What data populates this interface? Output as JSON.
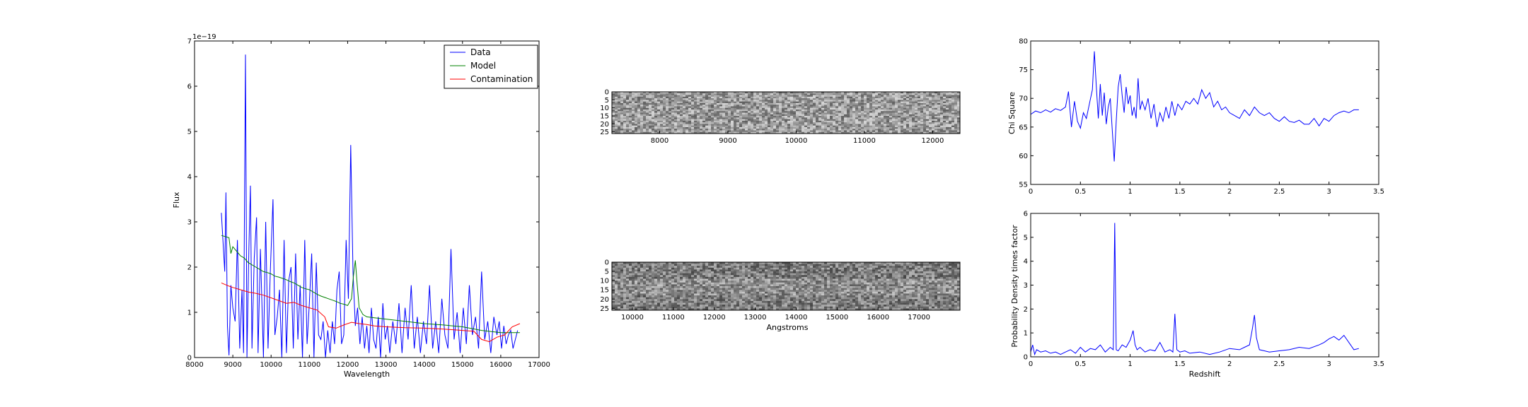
{
  "colors": {
    "data": "#0000ff",
    "model": "#008000",
    "contamination": "#ff0000",
    "axes": "#000000",
    "background": "#ffffff"
  },
  "chart_data": [
    {
      "id": "spectrum",
      "type": "line",
      "xlabel": "Wavelength",
      "ylabel": "Flux",
      "offset_text": "1e−19",
      "xlim": [
        8000,
        17000
      ],
      "ylim": [
        0,
        7
      ],
      "xticks": [
        8000,
        9000,
        10000,
        11000,
        12000,
        13000,
        14000,
        15000,
        16000,
        17000
      ],
      "yticks": [
        0,
        1,
        2,
        3,
        4,
        5,
        6,
        7
      ],
      "legend": {
        "position": "top-right",
        "entries": [
          "Data",
          "Model",
          "Contamination"
        ]
      },
      "series": [
        {
          "name": "Data",
          "color_key": "data",
          "x": [
            8700,
            8790,
            8820,
            8860,
            8900,
            8950,
            9000,
            9060,
            9120,
            9180,
            9240,
            9280,
            9330,
            9370,
            9420,
            9460,
            9500,
            9560,
            9620,
            9660,
            9720,
            9800,
            9860,
            9920,
            9980,
            10050,
            10100,
            10160,
            10220,
            10280,
            10340,
            10400,
            10460,
            10520,
            10580,
            10640,
            10700,
            10760,
            10820,
            10880,
            10940,
            11000,
            11060,
            11120,
            11180,
            11240,
            11300,
            11360,
            11420,
            11480,
            11540,
            11600,
            11660,
            11720,
            11780,
            11840,
            11900,
            11960,
            12020,
            12080,
            12140,
            12200,
            12260,
            12320,
            12380,
            12440,
            12500,
            12560,
            12620,
            12680,
            12740,
            12800,
            12860,
            12920,
            12980,
            13040,
            13100,
            13180,
            13260,
            13340,
            13420,
            13500,
            13580,
            13660,
            13740,
            13820,
            13900,
            13980,
            14060,
            14140,
            14220,
            14300,
            14380,
            14460,
            14540,
            14620,
            14700,
            14780,
            14860,
            14940,
            15020,
            15100,
            15180,
            15260,
            15340,
            15420,
            15500,
            15580,
            15660,
            15740,
            15820,
            15900,
            15960,
            16020,
            16080,
            16140,
            16200,
            16260,
            16320,
            16380,
            16440
          ],
          "y": [
            3.2,
            1.9,
            3.65,
            0.7,
            0.05,
            1.6,
            1.1,
            0.8,
            2.6,
            0.2,
            1.5,
            0.1,
            6.7,
            0.0,
            2.4,
            3.8,
            0.2,
            2.2,
            3.1,
            0.1,
            2.4,
            0.0,
            3.0,
            0.2,
            1.9,
            3.5,
            0.5,
            0.9,
            1.5,
            0.0,
            2.6,
            0.1,
            1.7,
            2.0,
            0.2,
            2.3,
            0.4,
            1.6,
            0.0,
            2.6,
            0.3,
            1.2,
            2.3,
            0.0,
            2.1,
            0.5,
            0.4,
            0.8,
            0.0,
            0.6,
            0.1,
            0.8,
            0.3,
            1.5,
            1.9,
            0.3,
            0.5,
            2.6,
            1.3,
            4.7,
            1.9,
            0.7,
            1.1,
            0.3,
            0.9,
            0.2,
            0.7,
            0.1,
            1.1,
            0.4,
            0.2,
            0.9,
            0.0,
            1.2,
            0.4,
            0.7,
            0.1,
            0.8,
            0.3,
            1.2,
            0.1,
            1.1,
            0.4,
            1.6,
            0.2,
            0.9,
            0.1,
            0.8,
            0.3,
            1.6,
            0.2,
            0.8,
            0.1,
            1.3,
            0.5,
            0.2,
            2.4,
            0.4,
            1.0,
            0.1,
            1.1,
            0.3,
            1.6,
            0.5,
            0.9,
            0.2,
            1.9,
            0.4,
            0.8,
            0.1,
            0.9,
            0.5,
            0.8,
            0.2,
            0.7,
            0.3,
            0.5,
            0.6,
            0.2,
            0.4,
            0.6
          ]
        },
        {
          "name": "Model",
          "color_key": "model",
          "x": [
            8700,
            8900,
            8950,
            9000,
            9100,
            9200,
            9300,
            9400,
            9500,
            9600,
            9700,
            9800,
            9900,
            10000,
            10100,
            10200,
            10300,
            10400,
            10500,
            10600,
            10700,
            10800,
            10900,
            11000,
            11100,
            11200,
            11300,
            11400,
            11500,
            11600,
            11700,
            11800,
            11900,
            12000,
            12100,
            12150,
            12200,
            12250,
            12300,
            12400,
            12500,
            12700,
            13000,
            13500,
            14000,
            14500,
            15000,
            15500,
            16000,
            16500
          ],
          "y": [
            2.7,
            2.65,
            2.3,
            2.45,
            2.35,
            2.25,
            2.2,
            2.1,
            2.05,
            2.0,
            1.95,
            1.9,
            1.88,
            1.85,
            1.8,
            1.78,
            1.75,
            1.72,
            1.68,
            1.65,
            1.6,
            1.55,
            1.52,
            1.5,
            1.45,
            1.4,
            1.36,
            1.33,
            1.3,
            1.27,
            1.24,
            1.2,
            1.18,
            1.15,
            1.3,
            1.8,
            2.15,
            1.6,
            1.1,
            0.95,
            0.9,
            0.88,
            0.85,
            0.8,
            0.75,
            0.72,
            0.68,
            0.6,
            0.55,
            0.55
          ]
        },
        {
          "name": "Contamination",
          "color_key": "contamination",
          "x": [
            8700,
            8900,
            9000,
            9200,
            9400,
            9600,
            9800,
            10000,
            10200,
            10400,
            10600,
            10800,
            11000,
            11200,
            11400,
            11500,
            11700,
            11900,
            12100,
            12300,
            12500,
            12700,
            13000,
            13500,
            14000,
            14500,
            15000,
            15300,
            15500,
            15700,
            15900,
            16100,
            16300,
            16500
          ],
          "y": [
            1.65,
            1.58,
            1.55,
            1.5,
            1.45,
            1.42,
            1.38,
            1.32,
            1.26,
            1.2,
            1.22,
            1.15,
            1.1,
            1.05,
            0.9,
            0.68,
            0.65,
            0.72,
            0.78,
            0.75,
            0.73,
            0.7,
            0.68,
            0.66,
            0.65,
            0.63,
            0.6,
            0.58,
            0.4,
            0.35,
            0.45,
            0.5,
            0.68,
            0.75
          ]
        }
      ]
    },
    {
      "id": "image-2d-top",
      "type": "heatmap",
      "xlim": [
        7300,
        12400
      ],
      "ylim": [
        0,
        26
      ],
      "xticks": [
        8000,
        9000,
        10000,
        11000,
        12000
      ],
      "yticks": [
        0,
        5,
        10,
        15,
        20,
        25
      ],
      "colormap": "gray"
    },
    {
      "id": "image-2d-bottom",
      "type": "heatmap",
      "xlabel": "Angstroms",
      "xlim": [
        9500,
        18000
      ],
      "ylim": [
        0,
        26
      ],
      "xticks": [
        10000,
        11000,
        12000,
        13000,
        14000,
        15000,
        16000,
        17000
      ],
      "yticks": [
        0,
        5,
        10,
        15,
        20,
        25
      ],
      "colormap": "gray"
    },
    {
      "id": "chi-square",
      "type": "line",
      "ylabel": "Chi Square",
      "xlim": [
        0.0,
        3.5
      ],
      "ylim": [
        55,
        80
      ],
      "xticks": [
        0.0,
        0.5,
        1.0,
        1.5,
        2.0,
        2.5,
        3.0,
        3.5
      ],
      "yticks": [
        55,
        60,
        65,
        70,
        75,
        80
      ],
      "series": [
        {
          "color_key": "data",
          "x": [
            0.0,
            0.05,
            0.1,
            0.15,
            0.2,
            0.25,
            0.3,
            0.35,
            0.38,
            0.41,
            0.44,
            0.47,
            0.5,
            0.53,
            0.56,
            0.59,
            0.62,
            0.64,
            0.66,
            0.68,
            0.7,
            0.72,
            0.74,
            0.76,
            0.78,
            0.8,
            0.82,
            0.84,
            0.86,
            0.88,
            0.9,
            0.92,
            0.94,
            0.96,
            0.98,
            1.0,
            1.02,
            1.04,
            1.06,
            1.08,
            1.1,
            1.12,
            1.15,
            1.18,
            1.21,
            1.24,
            1.27,
            1.3,
            1.33,
            1.36,
            1.39,
            1.42,
            1.45,
            1.48,
            1.52,
            1.56,
            1.6,
            1.64,
            1.68,
            1.72,
            1.76,
            1.8,
            1.84,
            1.88,
            1.92,
            1.96,
            2.0,
            2.05,
            2.1,
            2.15,
            2.2,
            2.25,
            2.3,
            2.35,
            2.4,
            2.45,
            2.5,
            2.55,
            2.6,
            2.65,
            2.7,
            2.75,
            2.8,
            2.85,
            2.9,
            2.95,
            3.0,
            3.05,
            3.1,
            3.15,
            3.2,
            3.25,
            3.3
          ],
          "y": [
            67.2,
            67.8,
            67.5,
            68.0,
            67.6,
            68.2,
            67.9,
            68.5,
            71.2,
            65.0,
            69.5,
            66.0,
            64.8,
            67.5,
            66.5,
            69.0,
            71.5,
            78.2,
            72.0,
            66.5,
            72.5,
            67.0,
            71.0,
            65.5,
            68.5,
            70.0,
            64.5,
            59.0,
            66.0,
            72.0,
            74.2,
            70.5,
            67.5,
            72.0,
            69.0,
            70.5,
            67.0,
            68.5,
            66.5,
            73.5,
            68.0,
            69.5,
            68.0,
            70.0,
            66.5,
            69.0,
            65.0,
            67.5,
            66.0,
            68.5,
            66.5,
            69.5,
            67.0,
            69.0,
            68.0,
            69.5,
            69.0,
            70.0,
            69.0,
            71.5,
            70.0,
            71.0,
            68.5,
            69.5,
            68.0,
            68.5,
            67.5,
            67.0,
            66.5,
            68.0,
            67.0,
            68.5,
            67.5,
            67.0,
            67.5,
            66.5,
            66.0,
            66.8,
            66.0,
            65.8,
            66.2,
            65.5,
            65.5,
            66.5,
            65.2,
            66.5,
            66.0,
            67.0,
            67.5,
            67.8,
            67.5,
            68.0,
            68.0
          ]
        }
      ]
    },
    {
      "id": "probability",
      "type": "line",
      "xlabel": "Redshift",
      "ylabel": "Probability Density times factor",
      "xlim": [
        0.0,
        3.5
      ],
      "ylim": [
        0,
        6
      ],
      "xticks": [
        0.0,
        0.5,
        1.0,
        1.5,
        2.0,
        2.5,
        3.0,
        3.5
      ],
      "yticks": [
        0,
        1,
        2,
        3,
        4,
        5,
        6
      ],
      "series": [
        {
          "color_key": "data",
          "x": [
            0.0,
            0.02,
            0.04,
            0.06,
            0.1,
            0.15,
            0.2,
            0.25,
            0.3,
            0.35,
            0.4,
            0.45,
            0.5,
            0.55,
            0.6,
            0.65,
            0.7,
            0.75,
            0.8,
            0.83,
            0.845,
            0.86,
            0.88,
            0.92,
            0.96,
            1.0,
            1.03,
            1.05,
            1.07,
            1.1,
            1.15,
            1.2,
            1.25,
            1.3,
            1.35,
            1.4,
            1.43,
            1.45,
            1.47,
            1.5,
            1.55,
            1.6,
            1.7,
            1.8,
            1.9,
            2.0,
            2.1,
            2.15,
            2.2,
            2.23,
            2.25,
            2.27,
            2.3,
            2.35,
            2.4,
            2.5,
            2.6,
            2.7,
            2.8,
            2.9,
            2.95,
            3.0,
            3.05,
            3.1,
            3.15,
            3.2,
            3.25,
            3.3
          ],
          "y": [
            0.2,
            0.5,
            0.1,
            0.3,
            0.2,
            0.25,
            0.15,
            0.2,
            0.1,
            0.2,
            0.3,
            0.15,
            0.4,
            0.2,
            0.35,
            0.3,
            0.5,
            0.2,
            0.4,
            0.3,
            5.6,
            0.3,
            0.25,
            0.5,
            0.4,
            0.7,
            1.1,
            0.5,
            0.3,
            0.4,
            0.2,
            0.3,
            0.25,
            0.6,
            0.2,
            0.3,
            0.2,
            1.8,
            0.3,
            0.2,
            0.25,
            0.15,
            0.2,
            0.1,
            0.2,
            0.35,
            0.3,
            0.4,
            0.5,
            1.2,
            1.75,
            0.8,
            0.3,
            0.25,
            0.2,
            0.25,
            0.3,
            0.4,
            0.35,
            0.5,
            0.6,
            0.75,
            0.85,
            0.7,
            0.9,
            0.6,
            0.3,
            0.35
          ]
        }
      ]
    }
  ]
}
